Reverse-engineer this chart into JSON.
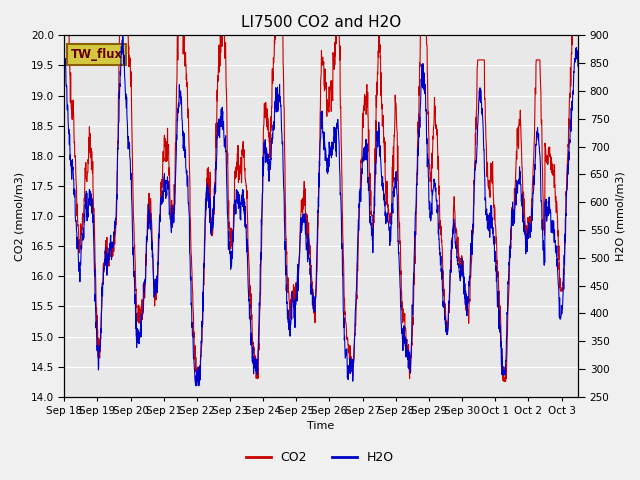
{
  "title": "LI7500 CO2 and H2O",
  "xlabel": "Time",
  "ylabel_left": "CO2 (mmol/m3)",
  "ylabel_right": "H2O (mmol/m3)",
  "ylim_left": [
    14.0,
    20.0
  ],
  "ylim_right": [
    250,
    900
  ],
  "yticks_left": [
    14.0,
    14.5,
    15.0,
    15.5,
    16.0,
    16.5,
    17.0,
    17.5,
    18.0,
    18.5,
    19.0,
    19.5,
    20.0
  ],
  "yticks_right": [
    250,
    300,
    350,
    400,
    450,
    500,
    550,
    600,
    650,
    700,
    750,
    800,
    850,
    900
  ],
  "co2_color": "#cc0000",
  "h2o_color": "#0000cc",
  "line_width": 0.8,
  "bg_color": "#e8e8e8",
  "fig_bg_color": "#f0f0f0",
  "label_box_text": "TW_flux",
  "label_box_bg": "#d4c840",
  "label_box_edge": "#8b6000",
  "legend_co2": "CO2",
  "legend_h2o": "H2O",
  "n_points": 2000,
  "title_fontsize": 11,
  "axis_fontsize": 8,
  "tick_fontsize": 7.5
}
